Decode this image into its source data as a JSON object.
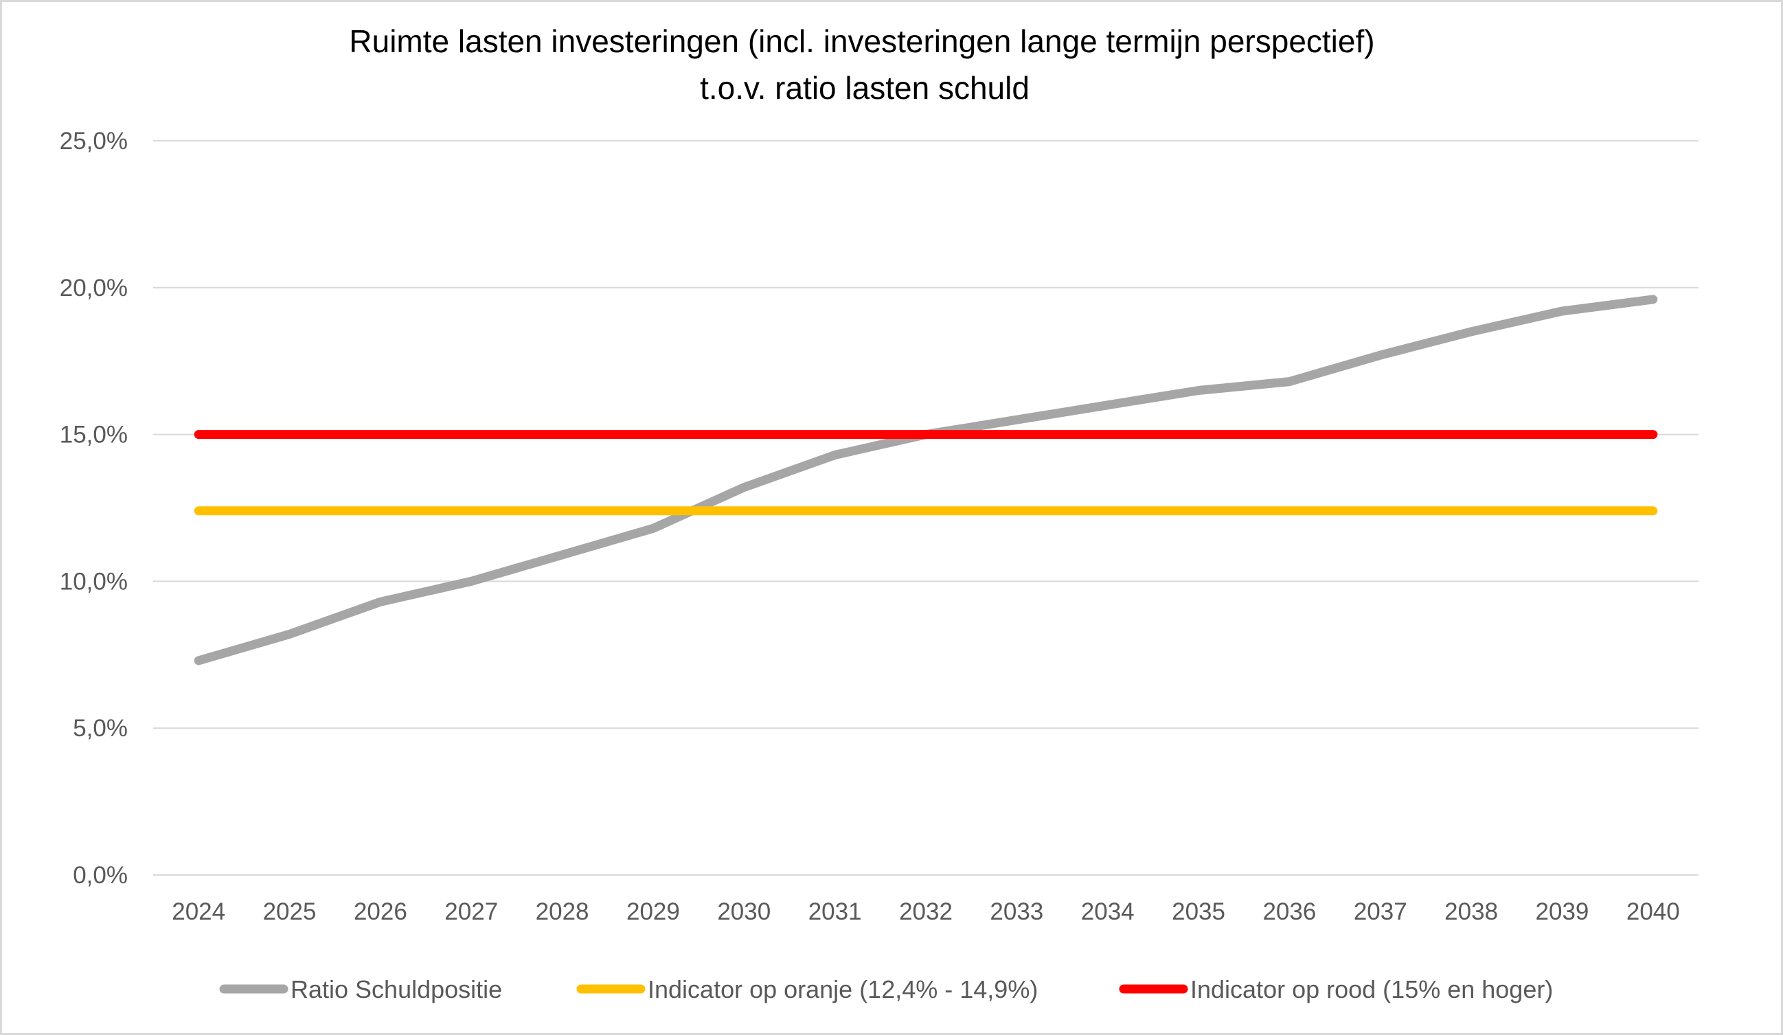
{
  "chart_data": {
    "type": "line",
    "title": "Ruimte lasten investeringen (incl. investeringen lange termijn perspectief)",
    "subtitle": "t.o.v. ratio lasten schuld",
    "xlabel": "",
    "ylabel": "",
    "categories": [
      "2024",
      "2025",
      "2026",
      "2027",
      "2028",
      "2029",
      "2030",
      "2031",
      "2032",
      "2033",
      "2034",
      "2035",
      "2036",
      "2037",
      "2038",
      "2039",
      "2040"
    ],
    "ylim": [
      0,
      25
    ],
    "yticks": [
      0,
      5,
      10,
      15,
      20,
      25
    ],
    "ytick_labels": [
      "0,0%",
      "5,0%",
      "10,0%",
      "15,0%",
      "20,0%",
      "25,0%"
    ],
    "grid": true,
    "legend_position": "bottom",
    "series": [
      {
        "name": "Ratio Schuldpositie",
        "color": "#a6a6a6",
        "values": [
          7.3,
          8.2,
          9.3,
          10.0,
          10.9,
          11.8,
          13.2,
          14.3,
          15.0,
          15.5,
          16.0,
          16.5,
          16.8,
          17.7,
          18.5,
          19.2,
          19.6
        ]
      },
      {
        "name": "Indicator op oranje (12,4% - 14,9%)",
        "color": "#ffc000",
        "values": [
          12.4,
          12.4,
          12.4,
          12.4,
          12.4,
          12.4,
          12.4,
          12.4,
          12.4,
          12.4,
          12.4,
          12.4,
          12.4,
          12.4,
          12.4,
          12.4,
          12.4
        ]
      },
      {
        "name": "Indicator op rood (15% en hoger)",
        "color": "#ff0000",
        "values": [
          15.0,
          15.0,
          15.0,
          15.0,
          15.0,
          15.0,
          15.0,
          15.0,
          15.0,
          15.0,
          15.0,
          15.0,
          15.0,
          15.0,
          15.0,
          15.0,
          15.0
        ]
      }
    ],
    "colors": {
      "grid": "#d9d9d9",
      "axis_text": "#595959",
      "title": "#000000"
    }
  }
}
